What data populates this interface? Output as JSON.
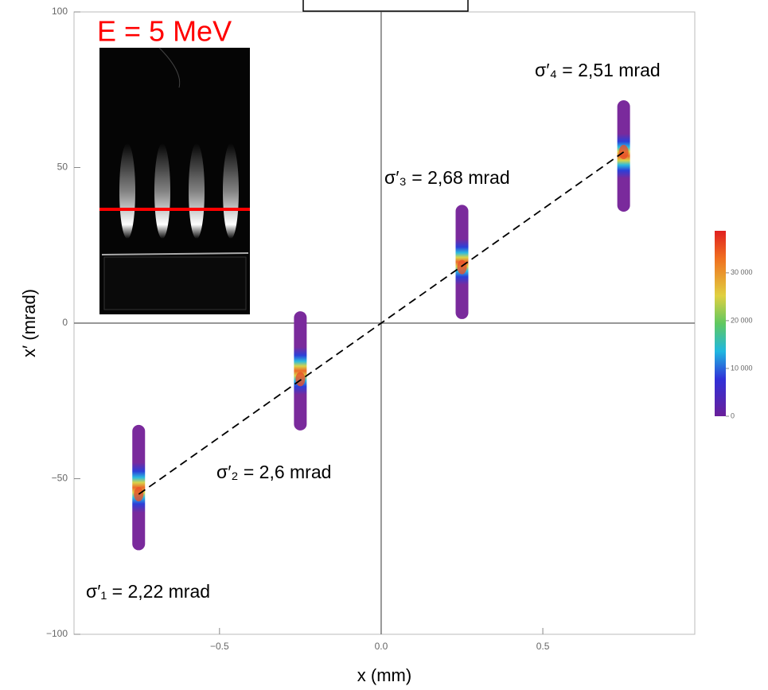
{
  "chart_data": {
    "type": "beamlets",
    "inset_title": "E = 5 MeV",
    "x_label": "x (mm)",
    "y_label": "x′ (mrad)",
    "xlim": [
      -0.95,
      0.97
    ],
    "ylim": [
      -100,
      100
    ],
    "xticks": [
      {
        "value": -0.5,
        "label": "−0.5"
      },
      {
        "value": 0,
        "label": "0.0"
      },
      0.5
    ],
    "yticks": [
      {
        "value": -100,
        "label": "−100"
      },
      {
        "value": -50,
        "label": "−50"
      },
      0,
      50,
      100
    ],
    "x": [
      -0.75,
      -0.25,
      0.25,
      0.75
    ],
    "y": [
      -55,
      -18,
      18,
      55
    ],
    "y_low": [
      -73,
      -34.5,
      1.3,
      35.8
    ],
    "y_high": [
      -32.7,
      3.8,
      38,
      71.6
    ],
    "annotations": [
      "σ′₁ = 2,22 mrad",
      "σ′₂ = 2,6 mrad",
      "σ′₃ = 2,68  mrad",
      "σ′₄ = 2,51 mrad"
    ],
    "fit_line": {
      "x": [
        -0.75,
        0.75
      ],
      "y": [
        -55,
        55
      ]
    },
    "colorbar": {
      "clim": [
        0,
        38800
      ],
      "ticks": [
        0,
        {
          "value": 10000,
          "label": "10 000"
        },
        {
          "value": 20000,
          "label": "20 000"
        },
        {
          "value": 30000,
          "label": "30 000"
        }
      ]
    }
  }
}
